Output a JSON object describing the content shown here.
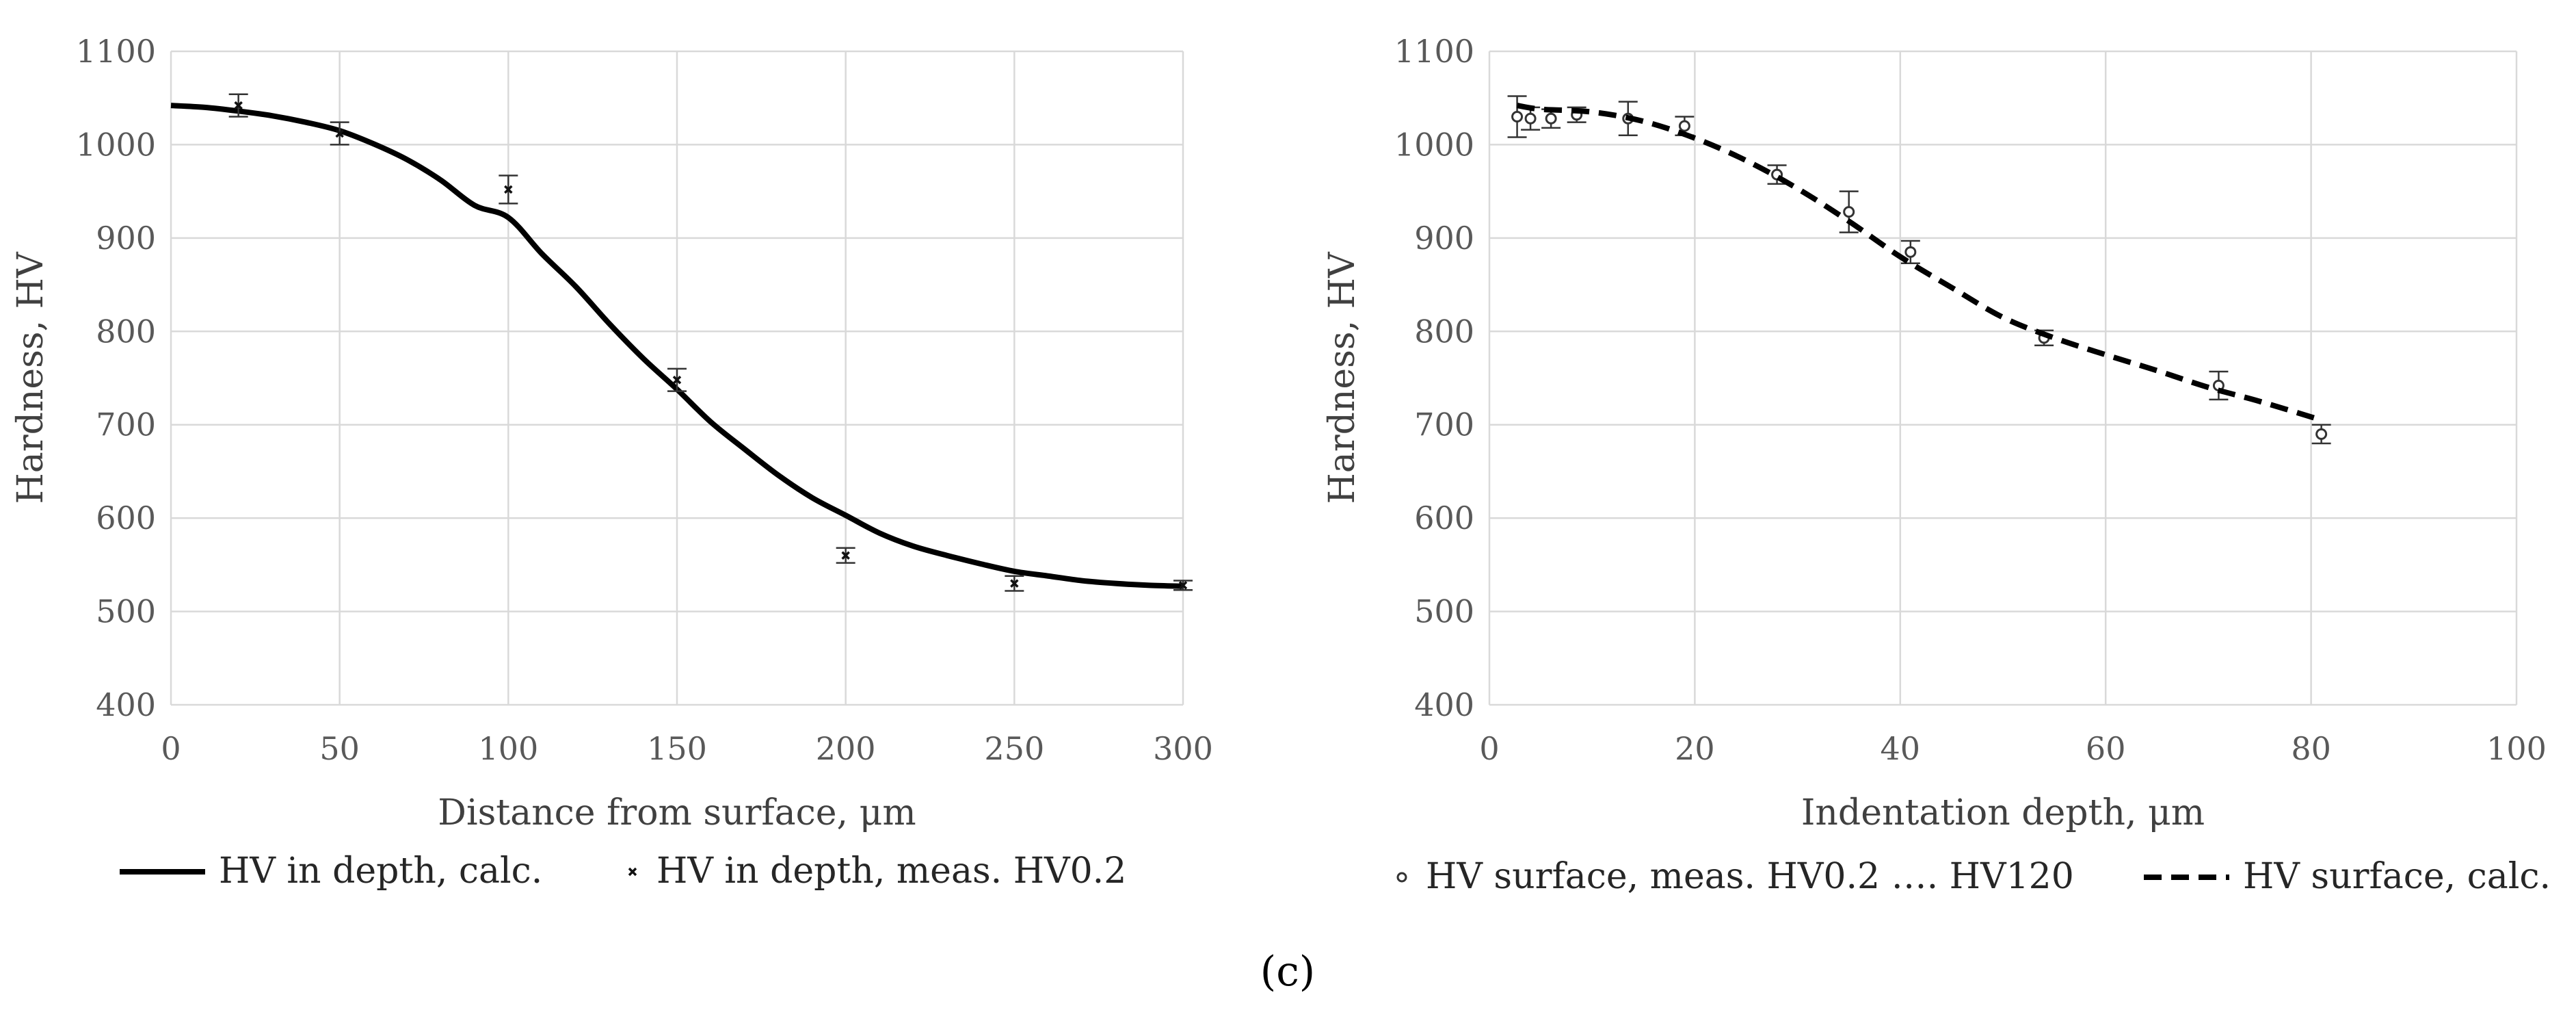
{
  "panel_label": "(c)",
  "chart_data": [
    {
      "type": "line",
      "title": "",
      "xlabel": "Distance from surface, μm",
      "ylabel": "Hardness, HV",
      "xlim": [
        0,
        300
      ],
      "ylim": [
        400,
        1100
      ],
      "xticks": [
        0,
        50,
        100,
        150,
        200,
        250,
        300
      ],
      "yticks": [
        400,
        500,
        600,
        700,
        800,
        900,
        1000,
        1100
      ],
      "grid": true,
      "legend_position": "bottom",
      "series": [
        {
          "name": "HV in depth, calc.",
          "style": "solid",
          "x": [
            0,
            10,
            20,
            30,
            40,
            50,
            60,
            70,
            80,
            90,
            100,
            110,
            120,
            130,
            140,
            150,
            160,
            170,
            180,
            190,
            200,
            210,
            220,
            230,
            240,
            250,
            260,
            270,
            280,
            290,
            300
          ],
          "y": [
            1042,
            1040,
            1036,
            1031,
            1024,
            1015,
            1001,
            984,
            962,
            935,
            922,
            883,
            848,
            808,
            771,
            738,
            703,
            674,
            646,
            622,
            603,
            584,
            570,
            560,
            551,
            543,
            538,
            533,
            530,
            528,
            527
          ]
        },
        {
          "name": "HV in depth, meas. HV0.2",
          "style": "marker-x",
          "x": [
            20,
            50,
            100,
            150,
            200,
            250,
            300
          ],
          "y": [
            1042,
            1012,
            952,
            748,
            560,
            530,
            528
          ],
          "err": [
            12,
            12,
            15,
            12,
            8,
            8,
            5
          ]
        }
      ]
    },
    {
      "type": "line",
      "title": "",
      "xlabel": "Indentation depth, μm",
      "ylabel": "Hardness, HV",
      "xlim": [
        0,
        100
      ],
      "ylim": [
        400,
        1100
      ],
      "xticks": [
        0,
        20,
        40,
        60,
        80,
        100
      ],
      "yticks": [
        400,
        500,
        600,
        700,
        800,
        900,
        1000,
        1100
      ],
      "grid": true,
      "legend_position": "bottom",
      "series": [
        {
          "name": "HV surface, meas. HV0.2 …. HV120",
          "style": "marker-circle",
          "x": [
            2.7,
            4,
            6,
            8.5,
            13.5,
            19,
            28,
            35,
            41,
            54,
            71,
            81
          ],
          "y": [
            1030,
            1028,
            1028,
            1032,
            1028,
            1020,
            968,
            928,
            885,
            793,
            742,
            690
          ],
          "err": [
            22,
            12,
            10,
            8,
            18,
            10,
            10,
            22,
            12,
            8,
            15,
            10
          ]
        },
        {
          "name": "HV surface, calc.",
          "style": "dashed",
          "x": [
            2.7,
            5,
            10,
            15,
            20,
            25,
            30,
            35,
            40,
            45,
            50,
            55,
            60,
            65,
            70,
            75,
            81
          ],
          "y": [
            1042,
            1038,
            1035,
            1025,
            1007,
            983,
            953,
            918,
            880,
            847,
            815,
            793,
            775,
            758,
            740,
            725,
            705
          ]
        }
      ]
    }
  ]
}
